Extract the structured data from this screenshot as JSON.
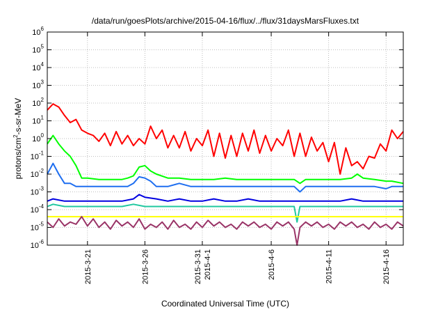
{
  "chart_data": {
    "type": "line",
    "title": "/data/run/goesPlots/archive/2015-04-16/flux/../flux/31daysMarsFluxes.txt",
    "xlabel": "Coordinated Universal Time (UTC)",
    "ylabel": {
      "prefix": "protons/cm",
      "sup": "2",
      "suffix": "-s-sr-MeV"
    },
    "y_scale": "log",
    "ylim": [
      1e-06,
      1000000.0
    ],
    "y_ticks": [
      {
        "value": 1000000.0,
        "base": "10",
        "exp": "6"
      },
      {
        "value": 100000.0,
        "base": "10",
        "exp": "5"
      },
      {
        "value": 10000.0,
        "base": "10",
        "exp": "4"
      },
      {
        "value": 1000.0,
        "base": "10",
        "exp": "3"
      },
      {
        "value": 100.0,
        "base": "10",
        "exp": "2"
      },
      {
        "value": 10.0,
        "base": "10",
        "exp": "1"
      },
      {
        "value": 1.0,
        "base": "10",
        "exp": "0"
      },
      {
        "value": 0.1,
        "base": "10",
        "exp": "-1"
      },
      {
        "value": 0.01,
        "base": "10",
        "exp": "-2"
      },
      {
        "value": 0.001,
        "base": "10",
        "exp": "-3"
      },
      {
        "value": 0.0001,
        "base": "10",
        "exp": "-4"
      },
      {
        "value": 1e-05,
        "base": "10",
        "exp": "-5"
      },
      {
        "value": 1e-06,
        "base": "10",
        "exp": "-6"
      }
    ],
    "xlim": [
      "2015-03-17T12:00",
      "2015-04-17T12:00"
    ],
    "x_ticks": [
      {
        "date": "2015-03-21",
        "lines": [
          "2015-3-21"
        ]
      },
      {
        "date": "2015-03-26",
        "lines": [
          "2015-3-26"
        ]
      },
      {
        "date": "2015-03-31",
        "lines": [
          "2015-3-31",
          "2015-4-1"
        ]
      },
      {
        "date": "2015-04-06",
        "lines": [
          "2015-4-6"
        ]
      },
      {
        "date": "2015-04-11",
        "lines": [
          "2015-4-11"
        ]
      },
      {
        "date": "2015-04-16",
        "lines": [
          "2015-4-16"
        ]
      }
    ],
    "grid": true,
    "series": [
      {
        "color": "#ff0000",
        "x": [
          "2015-03-17T12:00",
          "2015-03-18T00:00",
          "2015-03-18T12:00",
          "2015-03-19T00:00",
          "2015-03-19T12:00",
          "2015-03-20T00:00",
          "2015-03-20T12:00",
          "2015-03-21T00:00",
          "2015-03-21T12:00",
          "2015-03-22T00:00",
          "2015-03-22T12:00",
          "2015-03-23T00:00",
          "2015-03-23T12:00",
          "2015-03-24T00:00",
          "2015-03-24T12:00",
          "2015-03-25T00:00",
          "2015-03-25T12:00",
          "2015-03-26T00:00",
          "2015-03-26T12:00",
          "2015-03-27T00:00",
          "2015-03-27T12:00",
          "2015-03-28T00:00",
          "2015-03-28T12:00",
          "2015-03-29T00:00",
          "2015-03-29T12:00",
          "2015-03-30T00:00",
          "2015-03-30T12:00",
          "2015-03-31T00:00",
          "2015-03-31T12:00",
          "2015-04-01T00:00",
          "2015-04-01T12:00",
          "2015-04-02T00:00",
          "2015-04-02T12:00",
          "2015-04-03T00:00",
          "2015-04-03T12:00",
          "2015-04-04T00:00",
          "2015-04-04T12:00",
          "2015-04-05T00:00",
          "2015-04-05T12:00",
          "2015-04-06T00:00",
          "2015-04-06T12:00",
          "2015-04-07T00:00",
          "2015-04-07T12:00",
          "2015-04-08T00:00",
          "2015-04-08T12:00",
          "2015-04-09T00:00",
          "2015-04-09T12:00",
          "2015-04-10T00:00",
          "2015-04-10T12:00",
          "2015-04-11T00:00",
          "2015-04-11T12:00",
          "2015-04-12T00:00",
          "2015-04-12T12:00",
          "2015-04-13T00:00",
          "2015-04-13T12:00",
          "2015-04-14T00:00",
          "2015-04-14T12:00",
          "2015-04-15T00:00",
          "2015-04-15T12:00",
          "2015-04-16T00:00",
          "2015-04-16T12:00",
          "2015-04-17T00:00",
          "2015-04-17T12:00"
        ],
        "values": [
          40,
          90,
          60,
          20,
          8,
          12,
          3,
          2,
          1.5,
          0.7,
          2,
          0.4,
          2.5,
          0.5,
          1.5,
          0.4,
          1,
          0.5,
          5,
          1,
          3,
          0.3,
          1.5,
          0.3,
          2.5,
          0.2,
          1,
          0.4,
          3,
          0.1,
          2,
          0.08,
          1.5,
          0.1,
          2,
          0.2,
          3,
          0.15,
          1.5,
          0.2,
          1,
          0.4,
          3,
          0.1,
          2,
          0.1,
          1.2,
          0.2,
          0.6,
          0.05,
          0.6,
          0.01,
          0.3,
          0.03,
          0.05,
          0.02,
          0.1,
          0.08,
          0.5,
          0.2,
          3,
          1,
          2.5
        ]
      },
      {
        "color": "#00ff00",
        "x": [
          "2015-03-17T12:00",
          "2015-03-18T00:00",
          "2015-03-18T12:00",
          "2015-03-19T00:00",
          "2015-03-19T12:00",
          "2015-03-20T00:00",
          "2015-03-20T12:00",
          "2015-03-21T00:00",
          "2015-03-22T00:00",
          "2015-03-23T00:00",
          "2015-03-24T00:00",
          "2015-03-24T12:00",
          "2015-03-25T00:00",
          "2015-03-25T12:00",
          "2015-03-26T00:00",
          "2015-03-26T12:00",
          "2015-03-27T00:00",
          "2015-03-28T00:00",
          "2015-03-29T00:00",
          "2015-03-30T00:00",
          "2015-03-31T00:00",
          "2015-04-01T00:00",
          "2015-04-02T00:00",
          "2015-04-03T00:00",
          "2015-04-04T00:00",
          "2015-04-05T00:00",
          "2015-04-06T00:00",
          "2015-04-07T00:00",
          "2015-04-08T00:00",
          "2015-04-08T12:00",
          "2015-04-09T00:00",
          "2015-04-10T00:00",
          "2015-04-11T00:00",
          "2015-04-12T00:00",
          "2015-04-13T00:00",
          "2015-04-13T12:00",
          "2015-04-14T00:00",
          "2015-04-15T00:00",
          "2015-04-16T00:00",
          "2015-04-16T12:00",
          "2015-04-17T12:00"
        ],
        "values": [
          0.5,
          1.5,
          0.5,
          0.2,
          0.1,
          0.03,
          0.006,
          0.006,
          0.005,
          0.005,
          0.005,
          0.006,
          0.008,
          0.025,
          0.03,
          0.015,
          0.01,
          0.006,
          0.006,
          0.005,
          0.005,
          0.005,
          0.006,
          0.005,
          0.005,
          0.005,
          0.005,
          0.005,
          0.005,
          0.003,
          0.005,
          0.005,
          0.005,
          0.005,
          0.006,
          0.01,
          0.006,
          0.005,
          0.004,
          0.004,
          0.003
        ]
      },
      {
        "color": "#1e6ef0",
        "x": [
          "2015-03-17T12:00",
          "2015-03-18T00:00",
          "2015-03-18T12:00",
          "2015-03-19T00:00",
          "2015-03-19T12:00",
          "2015-03-20T00:00",
          "2015-03-21T00:00",
          "2015-03-22T00:00",
          "2015-03-23T00:00",
          "2015-03-24T00:00",
          "2015-03-24T12:00",
          "2015-03-25T00:00",
          "2015-03-25T12:00",
          "2015-03-26T00:00",
          "2015-03-26T12:00",
          "2015-03-27T00:00",
          "2015-03-28T00:00",
          "2015-03-29T00:00",
          "2015-03-30T00:00",
          "2015-03-31T00:00",
          "2015-04-01T00:00",
          "2015-04-02T00:00",
          "2015-04-03T00:00",
          "2015-04-04T00:00",
          "2015-04-05T00:00",
          "2015-04-06T00:00",
          "2015-04-07T00:00",
          "2015-04-08T00:00",
          "2015-04-08T12:00",
          "2015-04-09T00:00",
          "2015-04-10T00:00",
          "2015-04-11T00:00",
          "2015-04-12T00:00",
          "2015-04-13T00:00",
          "2015-04-14T00:00",
          "2015-04-15T00:00",
          "2015-04-16T00:00",
          "2015-04-16T12:00",
          "2015-04-17T12:00"
        ],
        "values": [
          0.01,
          0.04,
          0.01,
          0.003,
          0.003,
          0.002,
          0.002,
          0.002,
          0.002,
          0.002,
          0.002,
          0.003,
          0.007,
          0.006,
          0.004,
          0.002,
          0.002,
          0.003,
          0.002,
          0.002,
          0.002,
          0.002,
          0.002,
          0.002,
          0.002,
          0.002,
          0.002,
          0.002,
          0.001,
          0.002,
          0.002,
          0.002,
          0.002,
          0.002,
          0.002,
          0.002,
          0.0015,
          0.002,
          0.002
        ]
      },
      {
        "color": "#0000e0",
        "x": [
          "2015-03-17T12:00",
          "2015-03-18T00:00",
          "2015-03-19T00:00",
          "2015-03-20T00:00",
          "2015-03-21T00:00",
          "2015-03-22T00:00",
          "2015-03-23T00:00",
          "2015-03-24T00:00",
          "2015-03-25T00:00",
          "2015-03-25T12:00",
          "2015-03-26T00:00",
          "2015-03-27T00:00",
          "2015-03-28T00:00",
          "2015-03-29T00:00",
          "2015-03-30T00:00",
          "2015-03-31T00:00",
          "2015-04-01T00:00",
          "2015-04-02T00:00",
          "2015-04-03T00:00",
          "2015-04-04T00:00",
          "2015-04-05T00:00",
          "2015-04-06T00:00",
          "2015-04-07T00:00",
          "2015-04-08T00:00",
          "2015-04-09T00:00",
          "2015-04-10T00:00",
          "2015-04-11T00:00",
          "2015-04-12T00:00",
          "2015-04-13T00:00",
          "2015-04-14T00:00",
          "2015-04-15T00:00",
          "2015-04-16T00:00",
          "2015-04-17T00:00",
          "2015-04-17T12:00"
        ],
        "values": [
          0.0003,
          0.0004,
          0.0003,
          0.0003,
          0.0003,
          0.0003,
          0.0003,
          0.0003,
          0.0004,
          0.0007,
          0.0005,
          0.0004,
          0.0003,
          0.0004,
          0.0003,
          0.0003,
          0.0004,
          0.0003,
          0.0003,
          0.0004,
          0.0003,
          0.0003,
          0.0003,
          0.0003,
          0.0003,
          0.0003,
          0.0003,
          0.0003,
          0.0004,
          0.0003,
          0.0003,
          0.0003,
          0.0003,
          0.0003
        ]
      },
      {
        "color": "#20c8a0",
        "x": [
          "2015-03-17T12:00",
          "2015-03-18T00:00",
          "2015-03-19T00:00",
          "2015-03-20T00:00",
          "2015-03-21T00:00",
          "2015-03-22T00:00",
          "2015-03-23T00:00",
          "2015-03-24T00:00",
          "2015-03-25T00:00",
          "2015-03-26T00:00",
          "2015-03-27T00:00",
          "2015-03-28T00:00",
          "2015-03-29T00:00",
          "2015-03-30T00:00",
          "2015-03-31T00:00",
          "2015-04-01T00:00",
          "2015-04-02T00:00",
          "2015-04-03T00:00",
          "2015-04-04T00:00",
          "2015-04-05T00:00",
          "2015-04-06T00:00",
          "2015-04-07T00:00",
          "2015-04-08T00:00",
          "2015-04-08T06:00",
          "2015-04-08T12:00",
          "2015-04-09T00:00",
          "2015-04-10T00:00",
          "2015-04-11T00:00",
          "2015-04-12T00:00",
          "2015-04-13T00:00",
          "2015-04-14T00:00",
          "2015-04-15T00:00",
          "2015-04-16T00:00",
          "2015-04-17T00:00",
          "2015-04-17T12:00"
        ],
        "values": [
          0.00015,
          0.0002,
          0.00015,
          0.00015,
          0.00015,
          0.00015,
          0.00015,
          0.00015,
          0.0002,
          0.00015,
          0.00015,
          0.00015,
          0.00015,
          0.00015,
          0.00015,
          0.00015,
          0.00015,
          0.00015,
          0.00015,
          0.00015,
          0.00015,
          0.00015,
          0.00015,
          2e-05,
          0.00015,
          0.00015,
          0.00015,
          0.00015,
          0.00015,
          0.00015,
          0.00015,
          0.00015,
          0.00015,
          0.00015,
          0.00015
        ]
      },
      {
        "color": "#ffff00",
        "x": [
          "2015-03-17T12:00",
          "2015-03-19T00:00",
          "2015-03-21T00:00",
          "2015-03-23T00:00",
          "2015-03-25T00:00",
          "2015-03-27T00:00",
          "2015-03-29T00:00",
          "2015-03-31T00:00",
          "2015-04-02T00:00",
          "2015-04-04T00:00",
          "2015-04-06T00:00",
          "2015-04-08T00:00",
          "2015-04-10T00:00",
          "2015-04-12T00:00",
          "2015-04-14T00:00",
          "2015-04-16T00:00",
          "2015-04-17T12:00"
        ],
        "values": [
          4e-05,
          4e-05,
          4e-05,
          4e-05,
          4e-05,
          4e-05,
          4e-05,
          4e-05,
          4e-05,
          4e-05,
          4e-05,
          4e-05,
          4e-05,
          4e-05,
          4e-05,
          4e-05,
          4e-05
        ]
      },
      {
        "color": "#993366",
        "x": [
          "2015-03-17T12:00",
          "2015-03-18T00:00",
          "2015-03-18T12:00",
          "2015-03-19T00:00",
          "2015-03-19T12:00",
          "2015-03-20T00:00",
          "2015-03-20T12:00",
          "2015-03-21T00:00",
          "2015-03-21T12:00",
          "2015-03-22T00:00",
          "2015-03-22T12:00",
          "2015-03-23T00:00",
          "2015-03-23T12:00",
          "2015-03-24T00:00",
          "2015-03-24T12:00",
          "2015-03-25T00:00",
          "2015-03-25T12:00",
          "2015-03-26T00:00",
          "2015-03-26T12:00",
          "2015-03-27T00:00",
          "2015-03-27T12:00",
          "2015-03-28T00:00",
          "2015-03-28T12:00",
          "2015-03-29T00:00",
          "2015-03-29T12:00",
          "2015-03-30T00:00",
          "2015-03-30T12:00",
          "2015-03-31T00:00",
          "2015-03-31T12:00",
          "2015-04-01T00:00",
          "2015-04-01T12:00",
          "2015-04-02T00:00",
          "2015-04-02T12:00",
          "2015-04-03T00:00",
          "2015-04-03T12:00",
          "2015-04-04T00:00",
          "2015-04-04T12:00",
          "2015-04-05T00:00",
          "2015-04-05T12:00",
          "2015-04-06T00:00",
          "2015-04-06T12:00",
          "2015-04-07T00:00",
          "2015-04-07T12:00",
          "2015-04-08T00:00",
          "2015-04-08T06:00",
          "2015-04-08T12:00",
          "2015-04-09T00:00",
          "2015-04-09T12:00",
          "2015-04-10T00:00",
          "2015-04-10T12:00",
          "2015-04-11T00:00",
          "2015-04-11T12:00",
          "2015-04-12T00:00",
          "2015-04-12T12:00",
          "2015-04-13T00:00",
          "2015-04-13T12:00",
          "2015-04-14T00:00",
          "2015-04-14T12:00",
          "2015-04-15T00:00",
          "2015-04-15T12:00",
          "2015-04-16T00:00",
          "2015-04-16T12:00",
          "2015-04-17T00:00",
          "2015-04-17T12:00"
        ],
        "values": [
          2e-05,
          1e-05,
          3e-05,
          1.2e-05,
          2e-05,
          1.5e-05,
          4e-05,
          1.2e-05,
          3e-05,
          1e-05,
          2e-05,
          8e-06,
          2.5e-05,
          1.2e-05,
          2e-05,
          1e-05,
          3e-05,
          8e-06,
          1.5e-05,
          1e-05,
          2e-05,
          8e-06,
          2.5e-05,
          1e-05,
          1.5e-05,
          8e-06,
          2e-05,
          1e-05,
          2.5e-05,
          1.2e-05,
          2e-05,
          1e-05,
          1.5e-05,
          8e-06,
          2e-05,
          1.2e-05,
          2e-05,
          1e-05,
          1.5e-05,
          8e-06,
          2e-05,
          1.2e-05,
          2e-05,
          8e-06,
          1e-06,
          1e-05,
          2e-05,
          1.2e-05,
          2e-05,
          1e-05,
          1.5e-05,
          8e-06,
          2e-05,
          1.2e-05,
          2e-05,
          1e-05,
          1.5e-05,
          8e-06,
          2e-05,
          1e-05,
          1.5e-05,
          8e-06,
          2e-05,
          1.2e-05
        ]
      }
    ]
  }
}
